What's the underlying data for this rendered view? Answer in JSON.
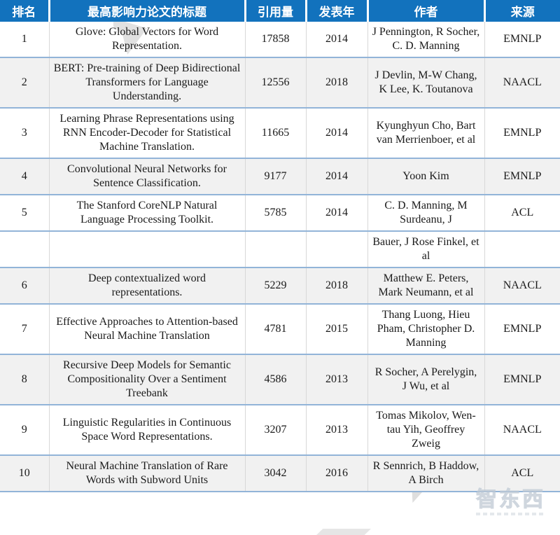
{
  "colors": {
    "header_bg": "#1272BD",
    "header_text": "#FFFFFF",
    "row_shaded_bg": "#F1F1F1",
    "row_divider": "#92B4D8",
    "column_divider": "#D8D8D8",
    "body_text": "#1A1A1A",
    "watermark_gray": "#DCDCDC"
  },
  "watermark": {
    "logo": "智东西"
  },
  "chart_data": {
    "type": "table",
    "title": "",
    "columns": [
      "排名",
      "最高影响力论文的标题",
      "引用量",
      "发表年",
      "作者",
      "来源"
    ],
    "rows": [
      {
        "rank": "1",
        "title": "Glove: Global Vectors for Word Representation.",
        "citations": 17858,
        "year": 2014,
        "authors": "J Pennington, R Socher, C. D. Manning",
        "venue": "EMNLP",
        "shaded": false,
        "continuation": false
      },
      {
        "rank": "2",
        "title": "BERT: Pre-training of Deep Bidirectional Transformers for Language Understanding.",
        "citations": 12556,
        "year": 2018,
        "authors": "J Devlin, M-W Chang, K Lee, K. Toutanova",
        "venue": "NAACL",
        "shaded": true,
        "continuation": false
      },
      {
        "rank": "3",
        "title": "Learning Phrase Representations using RNN Encoder-Decoder for Statistical Machine Translation.",
        "citations": 11665,
        "year": 2014,
        "authors": "Kyunghyun Cho, Bart van Merrienboer, et al",
        "venue": "EMNLP",
        "shaded": false,
        "continuation": false
      },
      {
        "rank": "4",
        "title": "Convolutional Neural Networks for Sentence Classification.",
        "citations": 9177,
        "year": 2014,
        "authors": "Yoon Kim",
        "venue": "EMNLP",
        "shaded": true,
        "continuation": false
      },
      {
        "rank": "5",
        "title": "The Stanford CoreNLP Natural Language Processing Toolkit.",
        "citations": 5785,
        "year": 2014,
        "authors": "C. D. Manning, M Surdeanu, J",
        "venue": "ACL",
        "shaded": false,
        "continuation": false
      },
      {
        "rank": "",
        "title": "",
        "citations": "",
        "year": "",
        "authors": "Bauer, J Rose Finkel, et al",
        "venue": "",
        "shaded": false,
        "continuation": true
      },
      {
        "rank": "6",
        "title": "Deep contextualized word representations.",
        "citations": 5229,
        "year": 2018,
        "authors": "Matthew E. Peters, Mark Neumann, et al",
        "venue": "NAACL",
        "shaded": true,
        "continuation": false
      },
      {
        "rank": "7",
        "title": "Effective Approaches to Attention-based Neural Machine Translation",
        "citations": 4781,
        "year": 2015,
        "authors": "Thang Luong, Hieu Pham, Christopher D. Manning",
        "venue": "EMNLP",
        "shaded": false,
        "continuation": false
      },
      {
        "rank": "8",
        "title": "Recursive Deep Models for Semantic Compositionality Over a Sentiment Treebank",
        "citations": 4586,
        "year": 2013,
        "authors": "R Socher, A Perelygin, J Wu, et al",
        "venue": "EMNLP",
        "shaded": true,
        "continuation": false
      },
      {
        "rank": "9",
        "title": "Linguistic Regularities in Continuous Space Word Representations.",
        "citations": 3207,
        "year": 2013,
        "authors": "Tomas Mikolov, Wen-tau Yih, Geoffrey Zweig",
        "venue": "NAACL",
        "shaded": false,
        "continuation": false
      },
      {
        "rank": "10",
        "title": "Neural Machine Translation of Rare Words with Subword Units",
        "citations": 3042,
        "year": 2016,
        "authors": "R Sennrich, B Haddow, A Birch",
        "venue": "ACL",
        "shaded": true,
        "continuation": false
      }
    ]
  }
}
